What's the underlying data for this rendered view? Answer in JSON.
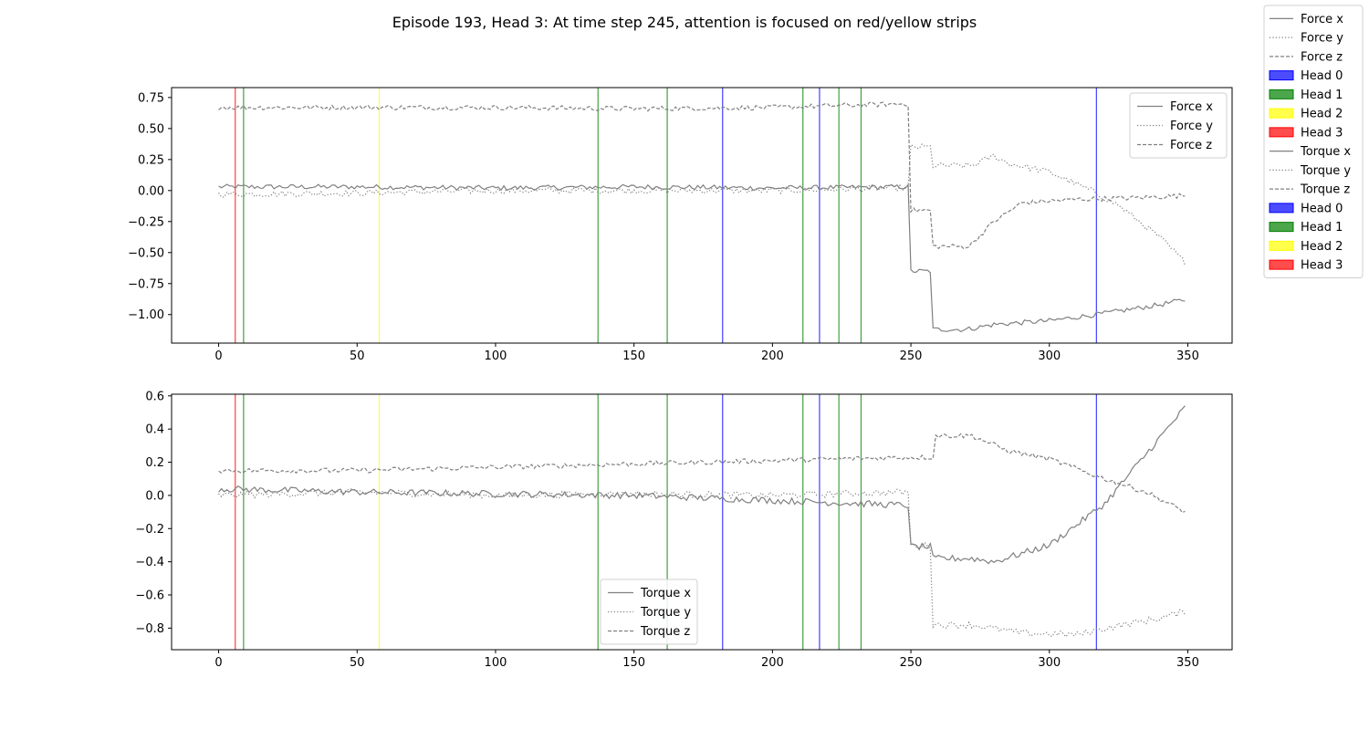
{
  "chart_data": {
    "title": "Episode 193, Head 3: At time step 245, attention is focused on red/yellow strips",
    "type": "line",
    "figure_legend": [
      {
        "label": "Force x",
        "kind": "line",
        "style": "solid"
      },
      {
        "label": "Force y",
        "kind": "line",
        "style": "dotted"
      },
      {
        "label": "Force z",
        "kind": "line",
        "style": "dashed"
      },
      {
        "label": "Head 0",
        "kind": "patch",
        "color": "#0000ff"
      },
      {
        "label": "Head 1",
        "kind": "patch",
        "color": "#008000"
      },
      {
        "label": "Head 2",
        "kind": "patch",
        "color": "#ffff00"
      },
      {
        "label": "Head 3",
        "kind": "patch",
        "color": "#ff0000"
      },
      {
        "label": "Torque x",
        "kind": "line",
        "style": "solid"
      },
      {
        "label": "Torque y",
        "kind": "line",
        "style": "dotted"
      },
      {
        "label": "Torque z",
        "kind": "line",
        "style": "dashed"
      },
      {
        "label": "Head 0",
        "kind": "patch",
        "color": "#0000ff"
      },
      {
        "label": "Head 1",
        "kind": "patch",
        "color": "#008000"
      },
      {
        "label": "Head 2",
        "kind": "patch",
        "color": "#ffff00"
      },
      {
        "label": "Head 3",
        "kind": "patch",
        "color": "#ff0000"
      }
    ],
    "head_colors": {
      "Head 0": "#0000ff",
      "Head 1": "#008000",
      "Head 2": "#ffff00",
      "Head 3": "#ff0000"
    },
    "attention_lines": [
      {
        "x": 6,
        "head": "Head 3"
      },
      {
        "x": 9,
        "head": "Head 1"
      },
      {
        "x": 58,
        "head": "Head 2"
      },
      {
        "x": 137,
        "head": "Head 1"
      },
      {
        "x": 162,
        "head": "Head 1"
      },
      {
        "x": 182,
        "head": "Head 0"
      },
      {
        "x": 211,
        "head": "Head 1"
      },
      {
        "x": 217,
        "head": "Head 0"
      },
      {
        "x": 224,
        "head": "Head 1"
      },
      {
        "x": 232,
        "head": "Head 1"
      },
      {
        "x": 317,
        "head": "Head 0"
      }
    ],
    "plots": [
      {
        "xlim": [
          -17,
          366
        ],
        "ylim": [
          -1.23,
          0.83
        ],
        "xticks": [
          0,
          50,
          100,
          150,
          200,
          250,
          300,
          350
        ],
        "yticks": [
          0.75,
          0.5,
          0.25,
          0.0,
          -0.25,
          -0.5,
          -0.75,
          -1.0
        ],
        "ytick_labels": [
          "0.75",
          "0.50",
          "0.25",
          "0.00",
          "−0.25",
          "−0.50",
          "−0.75",
          "−1.00"
        ],
        "legend": {
          "position": "upper-right",
          "entries": [
            "Force x",
            "Force y",
            "Force z"
          ]
        },
        "series": [
          {
            "name": "Force x",
            "style": "solid",
            "noise": 0.02,
            "points": [
              [
                0,
                0.03
              ],
              [
                50,
                0.03
              ],
              [
                100,
                0.02
              ],
              [
                150,
                0.03
              ],
              [
                200,
                0.02
              ],
              [
                249,
                0.03
              ],
              [
                250,
                -0.65
              ],
              [
                257,
                -0.65
              ],
              [
                258,
                -1.12
              ],
              [
                270,
                -1.12
              ],
              [
                280,
                -1.08
              ],
              [
                300,
                -1.05
              ],
              [
                320,
                -0.99
              ],
              [
                340,
                -0.92
              ],
              [
                349,
                -0.88
              ]
            ]
          },
          {
            "name": "Force y",
            "style": "dotted",
            "noise": 0.025,
            "points": [
              [
                0,
                -0.03
              ],
              [
                50,
                -0.02
              ],
              [
                100,
                0.0
              ],
              [
                150,
                0.0
              ],
              [
                200,
                0.0
              ],
              [
                249,
                0.02
              ],
              [
                250,
                0.35
              ],
              [
                257,
                0.35
              ],
              [
                258,
                0.2
              ],
              [
                272,
                0.2
              ],
              [
                280,
                0.28
              ],
              [
                285,
                0.22
              ],
              [
                300,
                0.15
              ],
              [
                315,
                0.0
              ],
              [
                325,
                -0.12
              ],
              [
                340,
                -0.38
              ],
              [
                349,
                -0.58
              ]
            ]
          },
          {
            "name": "Force z",
            "style": "dashed",
            "noise": 0.02,
            "points": [
              [
                0,
                0.67
              ],
              [
                50,
                0.67
              ],
              [
                100,
                0.67
              ],
              [
                150,
                0.66
              ],
              [
                200,
                0.67
              ],
              [
                249,
                0.7
              ],
              [
                250,
                -0.16
              ],
              [
                257,
                -0.16
              ],
              [
                258,
                -0.45
              ],
              [
                271,
                -0.45
              ],
              [
                280,
                -0.25
              ],
              [
                290,
                -0.1
              ],
              [
                310,
                -0.07
              ],
              [
                330,
                -0.06
              ],
              [
                349,
                -0.04
              ]
            ]
          }
        ]
      },
      {
        "xlim": [
          -17,
          366
        ],
        "ylim": [
          -0.93,
          0.61
        ],
        "xticks": [
          0,
          50,
          100,
          150,
          200,
          250,
          300,
          350
        ],
        "yticks": [
          0.6,
          0.4,
          0.2,
          0.0,
          -0.2,
          -0.4,
          -0.6,
          -0.8
        ],
        "ytick_labels": [
          "0.6",
          "0.4",
          "0.2",
          "0.0",
          "−0.2",
          "−0.4",
          "−0.6",
          "−0.8"
        ],
        "legend": {
          "position": "lower-center",
          "entries": [
            "Torque x",
            "Torque y",
            "Torque z"
          ]
        },
        "series": [
          {
            "name": "Torque x",
            "style": "solid",
            "noise": 0.02,
            "points": [
              [
                0,
                0.04
              ],
              [
                50,
                0.02
              ],
              [
                100,
                0.01
              ],
              [
                150,
                0.0
              ],
              [
                200,
                -0.03
              ],
              [
                249,
                -0.06
              ],
              [
                250,
                -0.31
              ],
              [
                257,
                -0.31
              ],
              [
                258,
                -0.38
              ],
              [
                272,
                -0.38
              ],
              [
                280,
                -0.4
              ],
              [
                300,
                -0.3
              ],
              [
                320,
                -0.05
              ],
              [
                335,
                0.25
              ],
              [
                349,
                0.53
              ]
            ]
          },
          {
            "name": "Torque y",
            "style": "dotted",
            "noise": 0.02,
            "points": [
              [
                0,
                0.0
              ],
              [
                50,
                0.02
              ],
              [
                100,
                0.0
              ],
              [
                150,
                0.01
              ],
              [
                200,
                0.0
              ],
              [
                249,
                0.02
              ],
              [
                250,
                -0.3
              ],
              [
                257,
                -0.3
              ],
              [
                258,
                -0.78
              ],
              [
                272,
                -0.78
              ],
              [
                290,
                -0.83
              ],
              [
                310,
                -0.84
              ],
              [
                320,
                -0.8
              ],
              [
                340,
                -0.74
              ],
              [
                349,
                -0.7
              ]
            ]
          },
          {
            "name": "Torque z",
            "style": "dashed",
            "noise": 0.015,
            "points": [
              [
                0,
                0.15
              ],
              [
                50,
                0.15
              ],
              [
                100,
                0.17
              ],
              [
                150,
                0.19
              ],
              [
                200,
                0.21
              ],
              [
                249,
                0.23
              ],
              [
                258,
                0.23
              ],
              [
                259,
                0.36
              ],
              [
                272,
                0.36
              ],
              [
                285,
                0.27
              ],
              [
                300,
                0.22
              ],
              [
                320,
                0.1
              ],
              [
                335,
                0.02
              ],
              [
                349,
                -0.1
              ]
            ]
          }
        ]
      }
    ]
  }
}
